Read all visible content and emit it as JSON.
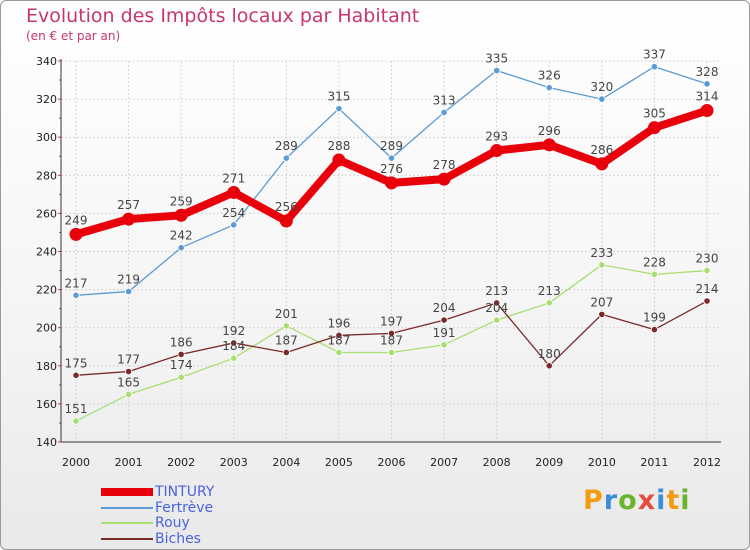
{
  "header": {
    "title": "Evolution des Impôts locaux par Habitant",
    "subtitle": "(en € et par an)"
  },
  "brand": {
    "logo_text": "Proxiti",
    "logo_colors": [
      "#f39c12",
      "#3a8fd6",
      "#6ab42e",
      "#e74c3c",
      "#3a8fd6",
      "#f39c12",
      "#6ab42e"
    ]
  },
  "chart_data": {
    "type": "line",
    "title": "Evolution des Impôts locaux par Habitant",
    "subtitle": "(en € et par an)",
    "xlabel": "",
    "ylabel": "",
    "x": [
      "2000",
      "2001",
      "2002",
      "2003",
      "2004",
      "2005",
      "2006",
      "2007",
      "2008",
      "2009",
      "2010",
      "2011",
      "2012"
    ],
    "ylim": [
      140,
      340
    ],
    "yticks": [
      140,
      160,
      180,
      200,
      220,
      240,
      260,
      280,
      300,
      320,
      340
    ],
    "grid": true,
    "legend_position": "bottom-left",
    "series": [
      {
        "name": "TINTURY",
        "color": "#e8000b",
        "emphasis": true,
        "values": [
          249,
          257,
          259,
          271,
          256,
          288,
          276,
          278,
          293,
          296,
          286,
          305,
          314
        ]
      },
      {
        "name": "Fertrève",
        "color": "#5b9bd5",
        "emphasis": false,
        "values": [
          217,
          219,
          242,
          254,
          289,
          315,
          289,
          313,
          335,
          326,
          320,
          337,
          328
        ]
      },
      {
        "name": "Rouy",
        "color": "#a8de70",
        "emphasis": false,
        "values": [
          151,
          165,
          174,
          184,
          201,
          187,
          187,
          191,
          204,
          213,
          233,
          228,
          230
        ]
      },
      {
        "name": "Biches",
        "color": "#7b2a2a",
        "emphasis": false,
        "values": [
          175,
          177,
          186,
          192,
          187,
          196,
          197,
          204,
          213,
          180,
          207,
          199,
          214
        ]
      }
    ]
  }
}
